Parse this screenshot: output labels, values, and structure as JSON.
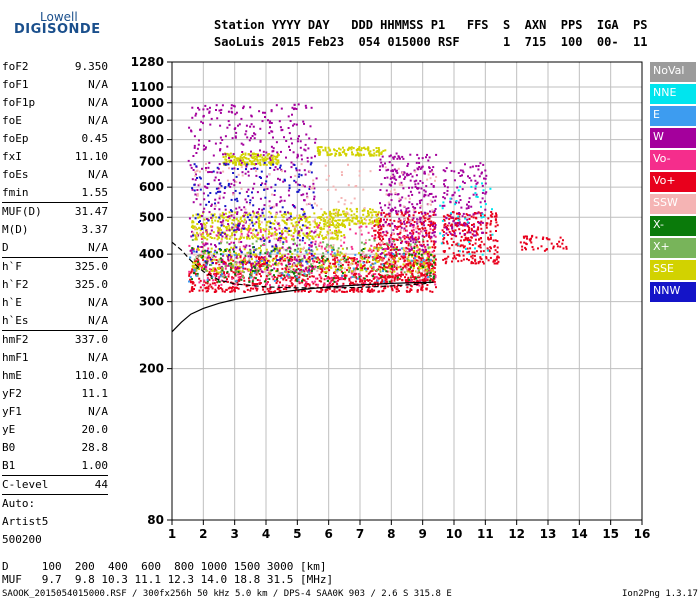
{
  "logo": {
    "line1": "Lowell",
    "line2": "DIGISONDE"
  },
  "header": {
    "line1": "Station YYYY DAY   DDD HHMMSS P1   FFS  S  AXN  PPS  IGA  PS",
    "line2": "SaoLuis 2015 Feb23  054 015000 RSF      1  715  100  00-  11"
  },
  "params": [
    {
      "label": "foF2",
      "value": "9.350"
    },
    {
      "label": "foF1",
      "value": "N/A"
    },
    {
      "label": "foF1p",
      "value": "N/A"
    },
    {
      "label": "foE",
      "value": "N/A"
    },
    {
      "label": "foEp",
      "value": "0.45"
    },
    {
      "label": "fxI",
      "value": "11.10"
    },
    {
      "label": "foEs",
      "value": "N/A"
    },
    {
      "label": "fmin",
      "value": "1.55",
      "sep": true
    },
    {
      "label": "MUF(D)",
      "value": "31.47"
    },
    {
      "label": "M(D)",
      "value": "3.37"
    },
    {
      "label": "D",
      "value": "N/A",
      "sep": true
    },
    {
      "label": "h`F",
      "value": "325.0"
    },
    {
      "label": "h`F2",
      "value": "325.0"
    },
    {
      "label": "h`E",
      "value": "N/A"
    },
    {
      "label": "h`Es",
      "value": "N/A",
      "sep": true
    },
    {
      "label": "hmF2",
      "value": "337.0"
    },
    {
      "label": "hmF1",
      "value": "N/A"
    },
    {
      "label": "hmE",
      "value": "110.0"
    },
    {
      "label": "yF2",
      "value": "11.1"
    },
    {
      "label": "yF1",
      "value": "N/A"
    },
    {
      "label": "yE",
      "value": "20.0"
    },
    {
      "label": "B0",
      "value": "28.8"
    },
    {
      "label": "B1",
      "value": "1.00",
      "sep": true
    },
    {
      "label": "C-level",
      "value": "44",
      "sep": true
    },
    {
      "label": "Auto:",
      "value": ""
    },
    {
      "label": "Artist5",
      "value": ""
    },
    {
      "label": "500200",
      "value": ""
    }
  ],
  "legend": [
    {
      "label": "NoVal",
      "color": "#9b9b9b"
    },
    {
      "label": "NNE",
      "color": "#00e5ee"
    },
    {
      "label": "E",
      "color": "#3d9cf0"
    },
    {
      "label": "W",
      "color": "#a4009c"
    },
    {
      "label": "Vo-",
      "color": "#f52d8c"
    },
    {
      "label": "Vo+",
      "color": "#e8001c"
    },
    {
      "label": "SSW",
      "color": "#f5b4b4"
    },
    {
      "label": "X-",
      "color": "#0a7a0a"
    },
    {
      "label": "X+",
      "color": "#78b45a"
    },
    {
      "label": "SSE",
      "color": "#d2d200"
    },
    {
      "label": "NNW",
      "color": "#1414c8"
    }
  ],
  "footer": {
    "line1": "D     100  200  400  600  800 1000 1500 3000 [km]",
    "line2": "MUF   9.7  9.8 10.3 11.1 12.3 14.0 18.8 31.5 [MHz]",
    "line3": "SAOOK_2015054015000.RSF / 300fx256h 50 kHz 5.0 km / DPS-4 SAA0K 903 / 2.6 S 315.8 E",
    "version": "Ion2Png 1.3.17"
  },
  "chart_data": {
    "type": "scatter",
    "x_ticks": [
      1,
      2,
      3,
      4,
      5,
      6,
      7,
      8,
      9,
      10,
      11,
      12,
      13,
      14,
      15,
      16
    ],
    "y_ticks": [
      80,
      200,
      300,
      400,
      500,
      600,
      700,
      800,
      900,
      1000,
      1100,
      1280
    ],
    "xlim": [
      1,
      16
    ],
    "ylim": [
      80,
      1280
    ],
    "grid": true,
    "legend_placement": "right",
    "clusters": [
      {
        "name": "Vo+",
        "color": "#e8001c",
        "x": [
          1.5,
          9.4
        ],
        "y": [
          320,
          400
        ],
        "n": 900
      },
      {
        "name": "Vo+",
        "color": "#e8001c",
        "x": [
          7.4,
          9.4
        ],
        "y": [
          340,
          520
        ],
        "n": 380
      },
      {
        "name": "Vo+",
        "color": "#e8001c",
        "x": [
          9.6,
          11.4
        ],
        "y": [
          380,
          520
        ],
        "n": 260
      },
      {
        "name": "Vo+",
        "color": "#e8001c",
        "x": [
          12.0,
          13.6
        ],
        "y": [
          410,
          450
        ],
        "n": 45
      },
      {
        "name": "Vo-",
        "color": "#f52d8c",
        "x": [
          1.5,
          9.4
        ],
        "y": [
          330,
          480
        ],
        "n": 350
      },
      {
        "name": "SSE",
        "color": "#d2d200",
        "x": [
          1.6,
          6.5
        ],
        "y": [
          440,
          520
        ],
        "n": 420
      },
      {
        "name": "SSE",
        "color": "#d2d200",
        "x": [
          2.6,
          4.4
        ],
        "y": [
          690,
          740
        ],
        "n": 160
      },
      {
        "name": "SSE",
        "color": "#d2d200",
        "x": [
          5.6,
          7.8
        ],
        "y": [
          730,
          770
        ],
        "n": 110
      },
      {
        "name": "SSE",
        "color": "#d2d200",
        "x": [
          6.0,
          7.6
        ],
        "y": [
          480,
          530
        ],
        "n": 120
      },
      {
        "name": "SSE",
        "color": "#d2d200",
        "x": [
          1.6,
          9.4
        ],
        "y": [
          360,
          420
        ],
        "n": 300
      },
      {
        "name": "W",
        "color": "#a4009c",
        "x": [
          1.5,
          5.6
        ],
        "y": [
          360,
          1000
        ],
        "n": 520
      },
      {
        "name": "W",
        "color": "#a4009c",
        "x": [
          7.6,
          9.4
        ],
        "y": [
          400,
          740
        ],
        "n": 280
      },
      {
        "name": "W",
        "color": "#a4009c",
        "x": [
          9.6,
          11.0
        ],
        "y": [
          450,
          700
        ],
        "n": 130
      },
      {
        "name": "NNW",
        "color": "#1414c8",
        "x": [
          1.6,
          5.5
        ],
        "y": [
          380,
          700
        ],
        "n": 180
      },
      {
        "name": "X-",
        "color": "#0a7a0a",
        "x": [
          1.6,
          9.4
        ],
        "y": [
          340,
          420
        ],
        "n": 160
      },
      {
        "name": "X+",
        "color": "#78b45a",
        "x": [
          1.6,
          9.4
        ],
        "y": [
          350,
          440
        ],
        "n": 140
      },
      {
        "name": "NNE",
        "color": "#00e5ee",
        "x": [
          9.5,
          11.2
        ],
        "y": [
          400,
          620
        ],
        "n": 40
      },
      {
        "name": "E",
        "color": "#3d9cf0",
        "x": [
          1.5,
          9.4
        ],
        "y": [
          340,
          420
        ],
        "n": 70
      },
      {
        "name": "SSW",
        "color": "#f5b4b4",
        "x": [
          1.6,
          9.4
        ],
        "y": [
          360,
          700
        ],
        "n": 220
      }
    ],
    "profile_curve": {
      "x": [
        1.0,
        1.3,
        1.6,
        2.0,
        2.5,
        3.0,
        4.0,
        5.0,
        6.0,
        7.0,
        8.0,
        9.0,
        9.35
      ],
      "y": [
        250,
        265,
        278,
        288,
        297,
        304,
        314,
        322,
        328,
        332,
        335,
        337,
        337
      ]
    },
    "virtual_trace": {
      "x": [
        1.0,
        1.3,
        1.6,
        2.0,
        2.5,
        3.0,
        4.0,
        5.0,
        6.0,
        7.0,
        8.0,
        9.0,
        9.35
      ],
      "y": [
        430,
        410,
        385,
        360,
        342,
        334,
        328,
        326,
        326,
        327,
        330,
        334,
        338
      ]
    }
  }
}
